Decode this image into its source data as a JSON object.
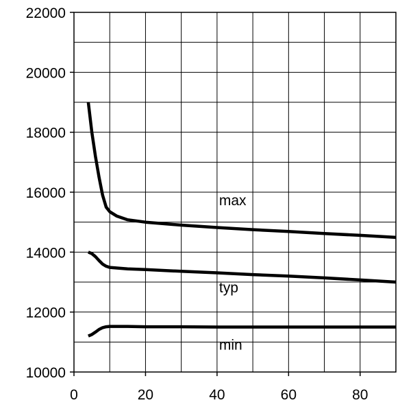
{
  "chart_data": {
    "type": "line",
    "title": "",
    "xlabel": "",
    "ylabel": "",
    "xlim": [
      0,
      90
    ],
    "ylim": [
      10000,
      22000
    ],
    "x_ticks": [
      0,
      20,
      40,
      60,
      80
    ],
    "x_tick_labels": [
      "0",
      "20",
      "40",
      "60",
      "80"
    ],
    "y_ticks": [
      10000,
      12000,
      14000,
      16000,
      18000,
      20000,
      22000
    ],
    "y_tick_labels": [
      "10000",
      "12000",
      "14000",
      "16000",
      "18000",
      "20000",
      "22000"
    ],
    "grid": true,
    "x_grid_step": 10,
    "y_grid_step": 1000,
    "series": [
      {
        "name": "max",
        "x": [
          4,
          5,
          6,
          7,
          8,
          9,
          10,
          12,
          15,
          20,
          25,
          30,
          40,
          50,
          60,
          70,
          80,
          90
        ],
        "y": [
          19000,
          18000,
          17200,
          16500,
          15900,
          15500,
          15350,
          15200,
          15080,
          15000,
          14950,
          14900,
          14820,
          14750,
          14690,
          14620,
          14560,
          14490
        ]
      },
      {
        "name": "typ",
        "x": [
          4,
          5,
          6,
          7,
          8,
          9,
          10,
          12,
          15,
          20,
          30,
          40,
          50,
          60,
          70,
          80,
          90
        ],
        "y": [
          14000,
          13950,
          13850,
          13720,
          13600,
          13530,
          13490,
          13470,
          13440,
          13420,
          13360,
          13310,
          13250,
          13200,
          13140,
          13070,
          13000
        ]
      },
      {
        "name": "min",
        "x": [
          4,
          5,
          6,
          7,
          8,
          9,
          10,
          12,
          15,
          20,
          30,
          40,
          50,
          60,
          70,
          80,
          90
        ],
        "y": [
          11200,
          11250,
          11330,
          11420,
          11480,
          11510,
          11520,
          11520,
          11520,
          11510,
          11510,
          11500,
          11500,
          11500,
          11500,
          11500,
          11500
        ]
      }
    ],
    "annotations": [
      {
        "text": "max",
        "x": 40,
        "y": 15560
      },
      {
        "text": "typ",
        "x": 40,
        "y": 12660
      },
      {
        "text": "min",
        "x": 40,
        "y": 10750
      }
    ]
  }
}
